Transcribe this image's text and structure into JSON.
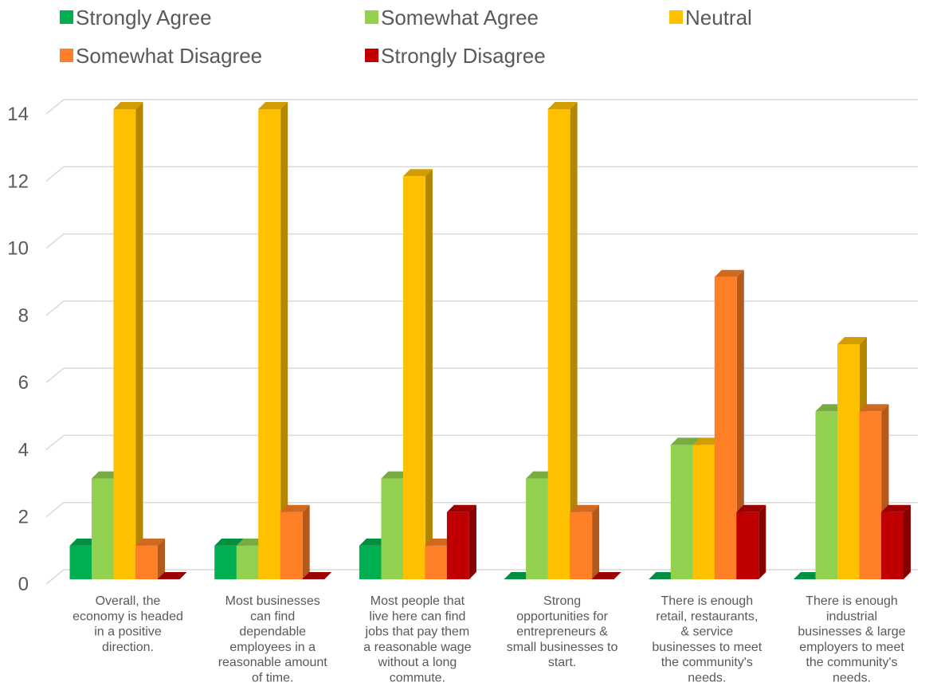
{
  "chart_data": {
    "type": "bar",
    "categories": [
      "Overall, the economy is headed in a positive direction.",
      "Most businesses can find dependable employees in a reasonable amount of time.",
      "Most people that live here can find jobs that pay them a reasonable wage without a long commute.",
      "Strong opportunities for entrepreneurs & small businesses to start.",
      "There is enough retail, restaurants, & service businesses to meet the community's needs.",
      "There is enough industrial businesses & large employers to meet the community's needs."
    ],
    "category_lines": [
      [
        "Overall, the",
        "economy is headed",
        "in a positive",
        "direction."
      ],
      [
        "Most businesses",
        "can find",
        "dependable",
        "employees in a",
        "reasonable amount",
        "of time."
      ],
      [
        "Most people that",
        "live here can find",
        "jobs that pay them",
        "a reasonable wage",
        "without a long",
        "commute."
      ],
      [
        "Strong",
        "opportunities for",
        "entrepreneurs &",
        "small businesses to",
        "start."
      ],
      [
        "There is enough",
        "retail, restaurants,",
        "& service",
        "businesses to meet",
        "the community's",
        "needs."
      ],
      [
        "There is enough",
        "industrial",
        "businesses & large",
        "employers to meet",
        "the community's",
        "needs."
      ]
    ],
    "series": [
      {
        "name": "Strongly Agree",
        "color": "#00b050",
        "values": [
          1,
          1,
          1,
          0,
          0,
          0
        ]
      },
      {
        "name": "Somewhat Agree",
        "color": "#92d050",
        "values": [
          3,
          1,
          3,
          3,
          4,
          5
        ]
      },
      {
        "name": "Neutral",
        "color": "#ffc000",
        "values": [
          14,
          14,
          12,
          14,
          4,
          7
        ]
      },
      {
        "name": "Somewhat Disagree",
        "color": "#ff7f27",
        "values": [
          1,
          2,
          1,
          2,
          9,
          5
        ]
      },
      {
        "name": "Strongly Disagree",
        "color": "#c00000",
        "values": [
          0,
          0,
          2,
          0,
          2,
          2
        ]
      }
    ],
    "ylim": [
      0,
      14
    ],
    "yticks": [
      0,
      2,
      4,
      6,
      8,
      10,
      12,
      14
    ],
    "grid": true,
    "legend_position": "top",
    "style": "3d-clustered-column"
  }
}
